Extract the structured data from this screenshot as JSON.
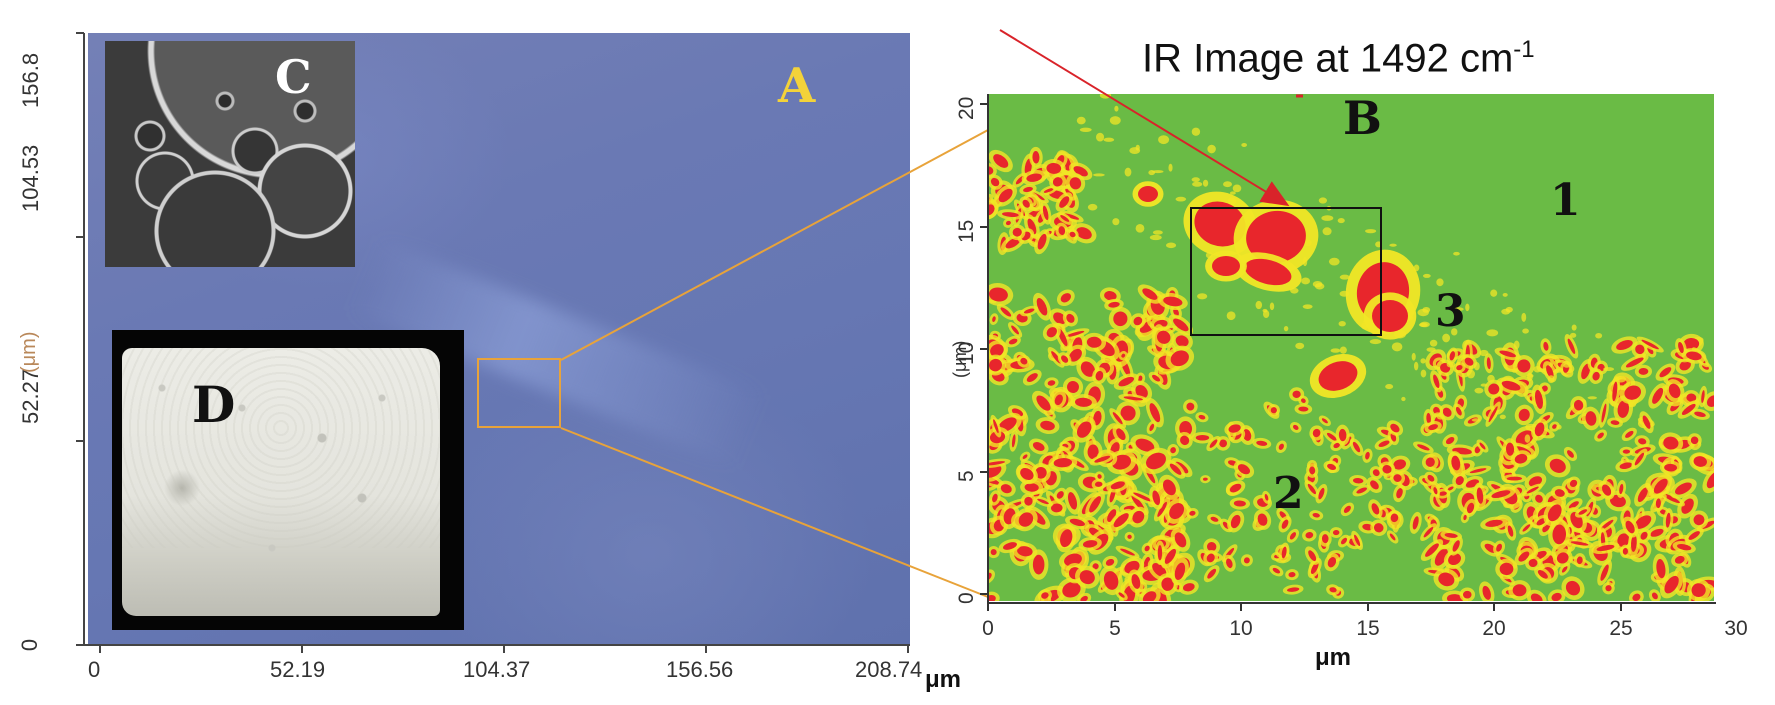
{
  "panel_a": {
    "label": "A",
    "x_axis": {
      "ticks": [
        "0",
        "52.19",
        "104.37",
        "156.56",
        "208.74"
      ],
      "unit": "μm"
    },
    "y_axis": {
      "ticks": [
        "0",
        "52.27",
        "104.53",
        "156.8"
      ],
      "label": "(μm)"
    },
    "inset_c_label": "C",
    "inset_d_label": "D"
  },
  "panel_b": {
    "title": "IR Image at 1492 cm",
    "title_superscript": "-1",
    "label": "B",
    "x_axis": {
      "ticks": [
        "0",
        "5",
        "10",
        "15",
        "20",
        "25",
        "30"
      ],
      "label": "μm"
    },
    "y_axis": {
      "ticks": [
        "0",
        "5",
        "10",
        "15",
        "20"
      ],
      "label": "(μm)"
    },
    "region_labels": [
      "1",
      "2",
      "3"
    ]
  },
  "colors": {
    "map_background": "#6abb45",
    "hotspot": "#e8262c",
    "hotspot_edge": "#f1e626",
    "zoom_lines": "#e8a33a",
    "arrow": "#d9232a",
    "label_a_color": "#f3d23a"
  }
}
